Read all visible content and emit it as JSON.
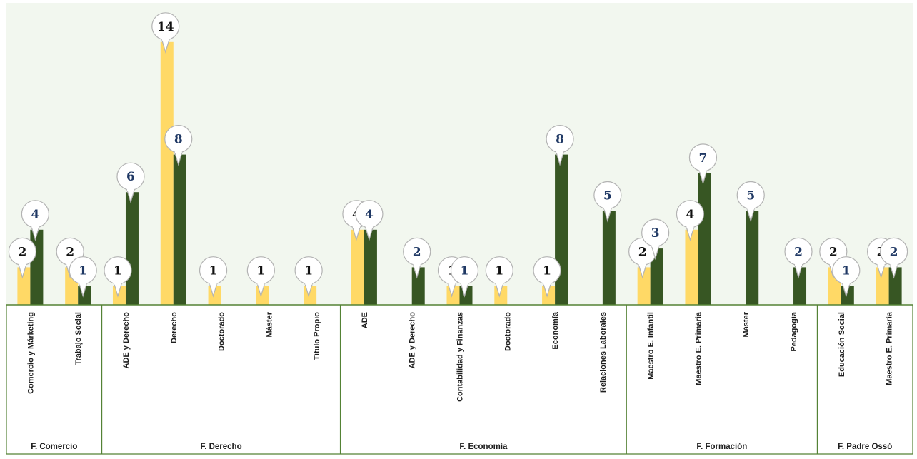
{
  "chart_data": {
    "type": "bar",
    "title": "",
    "xlabel": "",
    "ylabel": "",
    "ylim": [
      0,
      15
    ],
    "grid": false,
    "legend": "none",
    "colors": {
      "series_a": "#ffd966",
      "series_b": "#375623",
      "plot_background": "#f2f7ef",
      "axis_line": "#548235",
      "label_a": "#111111",
      "label_b": "#1f3864"
    },
    "groups": [
      {
        "label": "F. Comercio",
        "categories": [
          "Comercio y Márketing",
          "Trabajo Social"
        ]
      },
      {
        "label": "F. Derecho",
        "categories": [
          "ADE y Derecho",
          "Derecho",
          "Doctorado",
          "Máster",
          "Título Propio"
        ]
      },
      {
        "label": "F. Economía",
        "categories": [
          "ADE",
          "ADE y Derecho",
          "Contabilidad y Finanzas",
          "Doctorado",
          "Economía",
          "Relaciones Laborales"
        ]
      },
      {
        "label": "F. Formación",
        "categories": [
          "Maestro E. Infantil",
          "Maestro E. Primaria",
          "Máster",
          "Pedagogía"
        ]
      },
      {
        "label": "F. Padre Ossó",
        "categories": [
          "Educación Social",
          "Maestro E. Primaria"
        ]
      }
    ],
    "series": [
      {
        "values": [
          2,
          2,
          1,
          14,
          1,
          1,
          1,
          4,
          null,
          1,
          1,
          1,
          null,
          2,
          4,
          null,
          null,
          2,
          2
        ]
      },
      {
        "values": [
          4,
          1,
          6,
          8,
          null,
          null,
          null,
          4,
          2,
          1,
          null,
          8,
          5,
          3,
          7,
          5,
          2,
          1,
          2
        ]
      }
    ]
  }
}
